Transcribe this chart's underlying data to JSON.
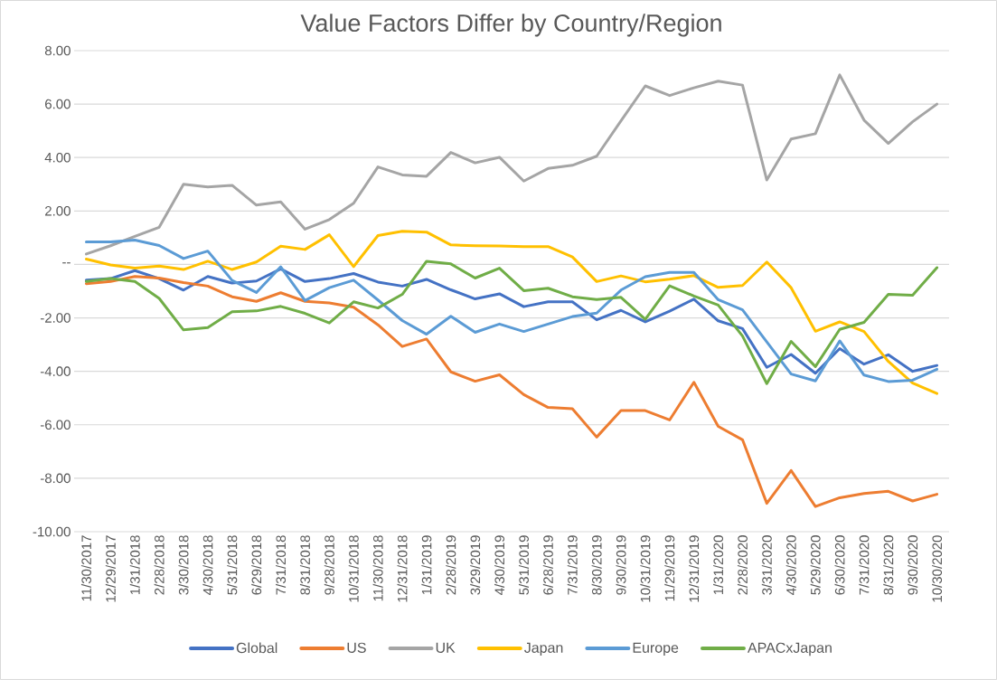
{
  "chart_data": {
    "type": "line",
    "title": "Value Factors Differ by Country/Region",
    "categories": [
      "11/30/2017",
      "12/29/2017",
      "1/31/2018",
      "2/28/2018",
      "3/30/2018",
      "4/30/2018",
      "5/31/2018",
      "6/29/2018",
      "7/31/2018",
      "8/31/2018",
      "9/28/2018",
      "10/31/2018",
      "11/30/2018",
      "12/31/2018",
      "1/31/2019",
      "2/28/2019",
      "3/29/2019",
      "4/30/2019",
      "5/31/2019",
      "6/28/2019",
      "7/31/2019",
      "8/30/2019",
      "9/30/2019",
      "10/31/2019",
      "11/29/2019",
      "12/31/2019",
      "1/31/2020",
      "2/28/2020",
      "3/31/2020",
      "4/30/2020",
      "5/29/2020",
      "6/30/2020",
      "7/31/2020",
      "8/31/2020",
      "9/30/2020",
      "10/30/2020"
    ],
    "series": [
      {
        "name": "Global",
        "color": "#4472c4",
        "values": [
          -0.59,
          -0.53,
          -0.23,
          -0.53,
          -0.96,
          -0.45,
          -0.7,
          -0.62,
          -0.17,
          -0.64,
          -0.53,
          -0.34,
          -0.66,
          -0.81,
          -0.56,
          -0.95,
          -1.29,
          -1.1,
          -1.58,
          -1.4,
          -1.4,
          -2.07,
          -1.72,
          -2.15,
          -1.75,
          -1.3,
          -2.11,
          -2.4,
          -3.85,
          -3.37,
          -4.07,
          -3.15,
          -3.73,
          -3.38,
          -4.0,
          -3.78
        ]
      },
      {
        "name": "US",
        "color": "#ed7d31",
        "values": [
          -0.72,
          -0.64,
          -0.45,
          -0.51,
          -0.68,
          -0.81,
          -1.21,
          -1.38,
          -1.06,
          -1.38,
          -1.44,
          -1.6,
          -2.26,
          -3.07,
          -2.79,
          -4.02,
          -4.37,
          -4.13,
          -4.87,
          -5.35,
          -5.4,
          -6.46,
          -5.47,
          -5.47,
          -5.82,
          -4.41,
          -6.06,
          -6.56,
          -8.94,
          -7.71,
          -9.06,
          -8.73,
          -8.57,
          -8.49,
          -8.85,
          -8.6
        ]
      },
      {
        "name": "UK",
        "color": "#a5a5a5",
        "values": [
          0.39,
          0.7,
          1.05,
          1.39,
          3.0,
          2.9,
          2.96,
          2.22,
          2.34,
          1.32,
          1.68,
          2.29,
          3.65,
          3.35,
          3.3,
          4.19,
          3.8,
          4.01,
          3.12,
          3.59,
          3.71,
          4.05,
          5.37,
          6.68,
          6.32,
          6.61,
          6.86,
          6.71,
          3.16,
          4.69,
          4.89,
          7.09,
          5.4,
          4.53,
          5.34,
          6.0
        ]
      },
      {
        "name": "Japan",
        "color": "#ffc000",
        "values": [
          0.2,
          -0.02,
          -0.14,
          -0.06,
          -0.19,
          0.12,
          -0.19,
          0.09,
          0.68,
          0.56,
          1.11,
          -0.08,
          1.08,
          1.24,
          1.21,
          0.73,
          0.7,
          0.69,
          0.67,
          0.67,
          0.28,
          -0.64,
          -0.43,
          -0.65,
          -0.55,
          -0.42,
          -0.86,
          -0.79,
          0.09,
          -0.87,
          -2.5,
          -2.15,
          -2.51,
          -3.63,
          -4.44,
          -4.83
        ]
      },
      {
        "name": "Europe",
        "color": "#5b9bd5",
        "values": [
          0.84,
          0.84,
          0.91,
          0.71,
          0.22,
          0.5,
          -0.6,
          -1.05,
          -0.09,
          -1.35,
          -0.87,
          -0.59,
          -1.33,
          -2.1,
          -2.61,
          -1.94,
          -2.54,
          -2.23,
          -2.51,
          -2.23,
          -1.95,
          -1.82,
          -0.96,
          -0.46,
          -0.3,
          -0.3,
          -1.32,
          -1.7,
          -2.9,
          -4.1,
          -4.36,
          -2.86,
          -4.14,
          -4.38,
          -4.33,
          -3.92
        ]
      },
      {
        "name": "APACxJapan",
        "color": "#70ad47",
        "values": [
          -0.64,
          -0.53,
          -0.64,
          -1.27,
          -2.45,
          -2.36,
          -1.77,
          -1.74,
          -1.57,
          -1.83,
          -2.19,
          -1.4,
          -1.63,
          -1.12,
          0.12,
          0.02,
          -0.51,
          -0.14,
          -0.98,
          -0.89,
          -1.21,
          -1.31,
          -1.23,
          -2.05,
          -0.8,
          -1.18,
          -1.52,
          -2.68,
          -4.46,
          -2.88,
          -3.82,
          -2.43,
          -2.17,
          -1.12,
          -1.15,
          -0.12
        ]
      }
    ],
    "ylim": [
      -10,
      8
    ],
    "yticks": [
      {
        "value": -10,
        "label": "-10.00"
      },
      {
        "value": -8,
        "label": "-8.00"
      },
      {
        "value": -6,
        "label": "-6.00"
      },
      {
        "value": -4,
        "label": "-4.00"
      },
      {
        "value": -2,
        "label": "-2.00"
      },
      {
        "value": 0,
        "label": "--"
      },
      {
        "value": 2,
        "label": "2.00"
      },
      {
        "value": 4,
        "label": "4.00"
      },
      {
        "value": 6,
        "label": "6.00"
      },
      {
        "value": 8,
        "label": "8.00"
      }
    ],
    "grid": "y",
    "legend": "bottom",
    "marker": "none",
    "line_style": "solid"
  }
}
